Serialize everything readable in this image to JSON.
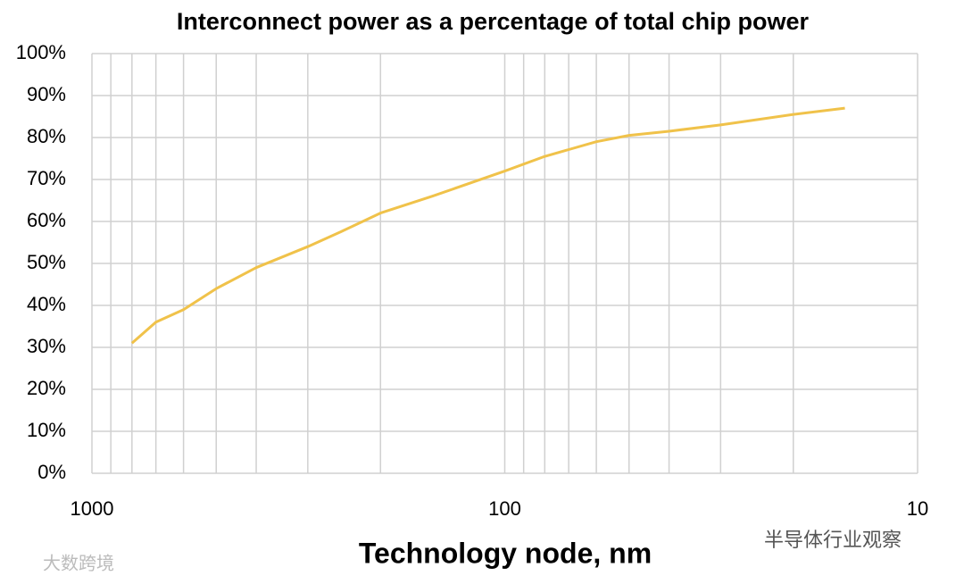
{
  "chart_data": {
    "type": "line",
    "title": "Interconnect power as a percentage of total chip power",
    "x_label": "Technology node, nm",
    "x": [
      800,
      700,
      600,
      500,
      400,
      300,
      250,
      200,
      150,
      100,
      80,
      60,
      50,
      40,
      30,
      20,
      15
    ],
    "series": [
      {
        "name": "Interconnect power",
        "color": "#f0c24a",
        "values": [
          31,
          36,
          39,
          44,
          49,
          54,
          57.5,
          62,
          66,
          72,
          75.5,
          79,
          80.5,
          81.5,
          83,
          85.5,
          87
        ]
      }
    ],
    "xlim": [
      1000,
      10
    ],
    "xlog": true,
    "xreversed": true,
    "xticks": [
      1000,
      100,
      10
    ],
    "xminorticks": [
      900,
      800,
      700,
      600,
      500,
      400,
      300,
      200,
      90,
      80,
      70,
      60,
      50,
      40,
      30,
      20
    ],
    "ylim": [
      0,
      100
    ],
    "yticks": [
      {
        "value": 0,
        "label": "0%"
      },
      {
        "value": 10,
        "label": "10%"
      },
      {
        "value": 20,
        "label": "20%"
      },
      {
        "value": 30,
        "label": "30%"
      },
      {
        "value": 40,
        "label": "40%"
      },
      {
        "value": 50,
        "label": "50%"
      },
      {
        "value": 60,
        "label": "60%"
      },
      {
        "value": 70,
        "label": "70%"
      },
      {
        "value": 80,
        "label": "80%"
      },
      {
        "value": 90,
        "label": "90%"
      },
      {
        "value": 100,
        "label": "100%"
      }
    ],
    "grid": true,
    "watermarks": [
      "大数跨境",
      "半导体行业观察"
    ]
  }
}
